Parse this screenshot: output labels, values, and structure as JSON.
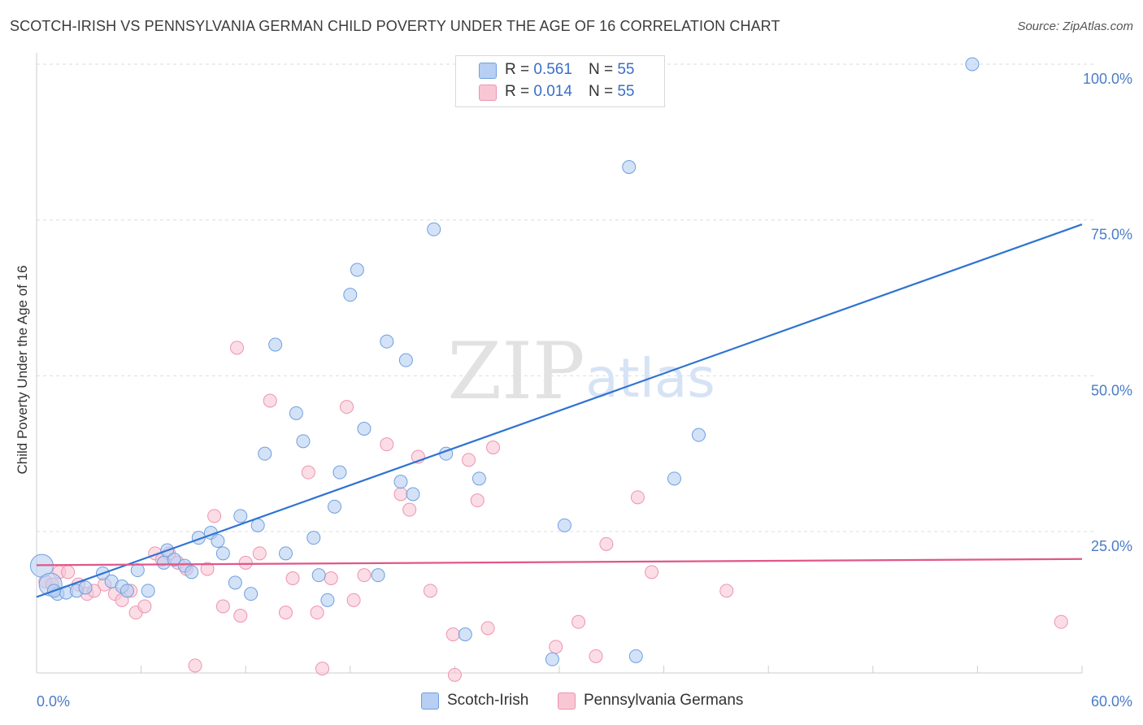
{
  "header": {
    "title": "SCOTCH-IRISH VS PENNSYLVANIA GERMAN CHILD POVERTY UNDER THE AGE OF 16 CORRELATION CHART",
    "source": "Source: ZipAtlas.com"
  },
  "watermark": {
    "zip": "ZIP",
    "atlas": "atlas"
  },
  "legend_top": {
    "rows": [
      {
        "r_label": "R =",
        "r_value": "0.561",
        "n_label": "N =",
        "n_value": "55"
      },
      {
        "r_label": "R =",
        "r_value": "0.014",
        "n_label": "N =",
        "n_value": "55"
      }
    ]
  },
  "colors": {
    "scotch_fill": "#b6cff2",
    "scotch_stroke": "#6f9fdf",
    "scotch_line": "#2f73d1",
    "penn_fill": "#f9c6d5",
    "penn_stroke": "#ee93b0",
    "penn_line": "#e0578a",
    "tick_text": "#4a7cc7",
    "grid": "#dddddd"
  },
  "chart_data": {
    "type": "scatter",
    "title": "SCOTCH-IRISH VS PENNSYLVANIA GERMAN CHILD POVERTY UNDER THE AGE OF 16 CORRELATION CHART",
    "xlabel": "",
    "ylabel": "Child Poverty Under the Age of 16",
    "xlim": [
      0,
      60
    ],
    "ylim": [
      0,
      104
    ],
    "x_tick_labels": [
      "0.0%",
      "60.0%"
    ],
    "y_ticks": [
      25,
      50,
      75,
      100
    ],
    "y_tick_labels": [
      "25.0%",
      "50.0%",
      "75.0%",
      "100.0%"
    ],
    "grid": true,
    "legend_position": "bottom",
    "series": [
      {
        "name": "Scotch-Irish",
        "R": 0.561,
        "N": 55,
        "trend": {
          "x": [
            0,
            60
          ],
          "y": [
            14.5,
            74.3
          ]
        },
        "points": [
          [
            0.3,
            19.5
          ],
          [
            0.8,
            16.5
          ],
          [
            1.2,
            15.0
          ],
          [
            1.7,
            15.2
          ],
          [
            2.3,
            15.5
          ],
          [
            2.8,
            16.0
          ],
          [
            3.8,
            18.3
          ],
          [
            4.3,
            17.0
          ],
          [
            4.9,
            16.2
          ],
          [
            5.2,
            15.5
          ],
          [
            5.8,
            18.8
          ],
          [
            6.4,
            15.5
          ],
          [
            7.3,
            20.0
          ],
          [
            7.5,
            22.0
          ],
          [
            7.9,
            20.5
          ],
          [
            8.5,
            19.5
          ],
          [
            8.9,
            18.5
          ],
          [
            9.3,
            24.0
          ],
          [
            10.0,
            24.8
          ],
          [
            10.4,
            23.5
          ],
          [
            10.7,
            21.5
          ],
          [
            11.4,
            16.8
          ],
          [
            11.7,
            27.5
          ],
          [
            12.3,
            15.0
          ],
          [
            12.7,
            26.0
          ],
          [
            13.1,
            37.5
          ],
          [
            13.7,
            55.0
          ],
          [
            14.3,
            21.5
          ],
          [
            14.9,
            44.0
          ],
          [
            15.3,
            39.5
          ],
          [
            15.9,
            24.0
          ],
          [
            16.2,
            18.0
          ],
          [
            16.7,
            14.0
          ],
          [
            17.1,
            29.0
          ],
          [
            17.4,
            34.5
          ],
          [
            18.0,
            63.0
          ],
          [
            18.4,
            67.0
          ],
          [
            18.8,
            41.5
          ],
          [
            19.6,
            18.0
          ],
          [
            20.1,
            55.5
          ],
          [
            20.9,
            33.0
          ],
          [
            21.2,
            52.5
          ],
          [
            21.6,
            31.0
          ],
          [
            22.8,
            73.5
          ],
          [
            23.5,
            37.5
          ],
          [
            24.6,
            8.5
          ],
          [
            25.4,
            33.5
          ],
          [
            29.6,
            4.5
          ],
          [
            30.3,
            26.0
          ],
          [
            34.0,
            83.5
          ],
          [
            34.4,
            5.0
          ],
          [
            36.6,
            33.5
          ],
          [
            38.0,
            40.5
          ],
          [
            53.7,
            100.0
          ],
          [
            1.0,
            15.5
          ]
        ]
      },
      {
        "name": "Pennsylvania Germans",
        "R": 0.014,
        "N": 55,
        "trend": {
          "x": [
            0,
            60
          ],
          "y": [
            19.6,
            20.6
          ]
        },
        "points": [
          [
            0.5,
            17.0
          ],
          [
            0.9,
            16.5
          ],
          [
            1.3,
            18.5
          ],
          [
            1.8,
            18.5
          ],
          [
            2.4,
            16.5
          ],
          [
            2.9,
            15.0
          ],
          [
            3.3,
            15.5
          ],
          [
            3.9,
            16.5
          ],
          [
            4.5,
            15.0
          ],
          [
            4.9,
            14.0
          ],
          [
            5.4,
            15.5
          ],
          [
            5.7,
            12.0
          ],
          [
            6.2,
            13.0
          ],
          [
            6.8,
            21.5
          ],
          [
            7.2,
            20.5
          ],
          [
            7.6,
            21.5
          ],
          [
            8.1,
            20.0
          ],
          [
            8.6,
            19.0
          ],
          [
            9.1,
            3.5
          ],
          [
            9.8,
            19.0
          ],
          [
            10.2,
            27.5
          ],
          [
            10.7,
            13.0
          ],
          [
            11.5,
            54.5
          ],
          [
            11.7,
            11.5
          ],
          [
            12.0,
            20.0
          ],
          [
            12.8,
            21.5
          ],
          [
            13.4,
            46.0
          ],
          [
            14.3,
            12.0
          ],
          [
            14.7,
            17.5
          ],
          [
            15.6,
            34.5
          ],
          [
            16.1,
            12.0
          ],
          [
            16.4,
            3.0
          ],
          [
            16.9,
            17.5
          ],
          [
            17.8,
            45.0
          ],
          [
            18.2,
            14.0
          ],
          [
            18.8,
            18.0
          ],
          [
            20.1,
            39.0
          ],
          [
            20.9,
            31.0
          ],
          [
            21.4,
            28.5
          ],
          [
            21.9,
            37.0
          ],
          [
            22.6,
            15.5
          ],
          [
            23.9,
            8.5
          ],
          [
            24.0,
            2.0
          ],
          [
            24.8,
            36.5
          ],
          [
            25.3,
            30.0
          ],
          [
            25.9,
            9.5
          ],
          [
            26.2,
            38.5
          ],
          [
            29.8,
            6.5
          ],
          [
            31.1,
            10.5
          ],
          [
            32.1,
            5.0
          ],
          [
            32.7,
            23.0
          ],
          [
            34.5,
            30.5
          ],
          [
            35.3,
            18.5
          ],
          [
            39.6,
            15.5
          ],
          [
            58.8,
            10.5
          ]
        ]
      }
    ]
  },
  "bottom_legend": [
    {
      "label": "Scotch-Irish"
    },
    {
      "label": "Pennsylvania Germans"
    }
  ]
}
